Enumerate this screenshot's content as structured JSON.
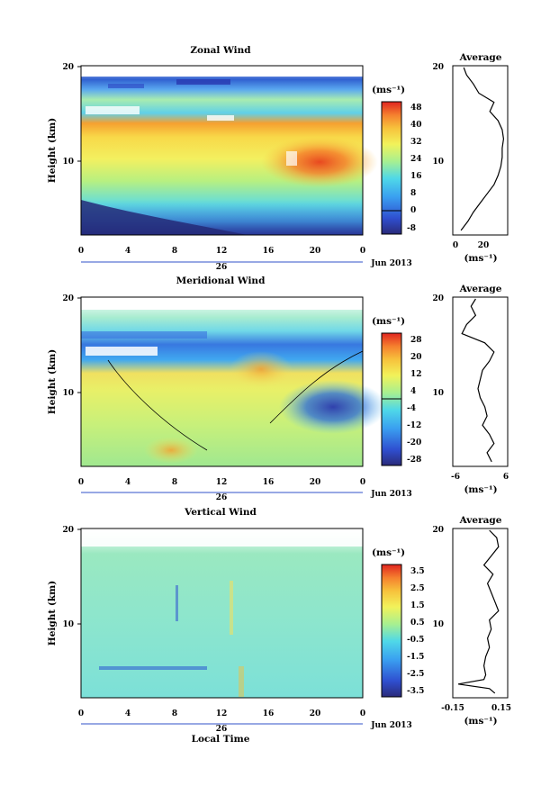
{
  "figure": {
    "xlabel": "Local Time",
    "date_label": "Jun 2013",
    "day_label": "26",
    "ylabel": "Height (km)",
    "unit_label": "(ms⁻¹)",
    "avg_unit_label": "(ms⁻¹)",
    "avg_title": "Average"
  },
  "chart_data": [
    {
      "type": "heatmap",
      "title": "Zonal Wind",
      "xlabel": "Local Time",
      "ylabel": "Height (km)",
      "x_ticks": [
        "0",
        "4",
        "8",
        "12",
        "16",
        "20",
        "0"
      ],
      "y_ticks": [
        "20",
        "10"
      ],
      "xlim": [
        0,
        24
      ],
      "ylim": [
        1.5,
        20
      ],
      "colorbar": {
        "unit": "(ms⁻¹)",
        "ticks": [
          "48",
          "40",
          "32",
          "24",
          "16",
          "8",
          "0",
          "-8"
        ],
        "range": [
          -10,
          50
        ]
      },
      "description_values": {
        "low_level_min": -8,
        "jet_core_max": 44,
        "jet_height_km": 11
      },
      "average_profile": {
        "title": "Average",
        "x_ticks": [
          "0",
          "20"
        ],
        "xlim": [
          -5,
          35
        ],
        "height": [
          2,
          3,
          4,
          5,
          6,
          7,
          8,
          9,
          10,
          11,
          12,
          13,
          14,
          15,
          16,
          17,
          18,
          19,
          19.8
        ],
        "value": [
          1,
          6,
          10,
          15,
          20,
          25,
          28,
          30,
          31,
          31,
          32,
          31,
          28,
          22,
          25,
          14,
          10,
          5,
          3
        ]
      }
    },
    {
      "type": "heatmap",
      "title": "Meridional Wind",
      "xlabel": "Local Time",
      "ylabel": "Height (km)",
      "x_ticks": [
        "0",
        "4",
        "8",
        "12",
        "16",
        "20",
        "0"
      ],
      "y_ticks": [
        "20",
        "10"
      ],
      "xlim": [
        0,
        24
      ],
      "ylim": [
        1.5,
        20
      ],
      "colorbar": {
        "unit": "(ms⁻¹)",
        "ticks": [
          "28",
          "20",
          "12",
          "4",
          "-4",
          "-12",
          "-20",
          "-28"
        ],
        "range": [
          -30,
          30
        ]
      },
      "average_profile": {
        "title": "Average",
        "x_ticks": [
          "-6",
          "6"
        ],
        "xlim": [
          -6,
          6
        ],
        "height": [
          2,
          3,
          4,
          5,
          6,
          7,
          8,
          9,
          10,
          11,
          12,
          13,
          14,
          15,
          16,
          17,
          18,
          19,
          19.8
        ],
        "value": [
          2.5,
          1.5,
          3,
          2,
          0.5,
          1.5,
          1,
          0,
          -0.5,
          0,
          0.5,
          2,
          3,
          1,
          -4,
          -3,
          -1,
          -2,
          -1
        ]
      }
    },
    {
      "type": "heatmap",
      "title": "Vertical Wind",
      "xlabel": "Local Time",
      "ylabel": "Height (km)",
      "x_ticks": [
        "0",
        "4",
        "8",
        "12",
        "16",
        "20",
        "0"
      ],
      "y_ticks": [
        "20",
        "10"
      ],
      "xlim": [
        0,
        24
      ],
      "ylim": [
        1.5,
        20
      ],
      "colorbar": {
        "unit": "(ms⁻¹)",
        "ticks": [
          "3.5",
          "2.5",
          "1.5",
          "0.5",
          "-0.5",
          "-1.5",
          "-2.5",
          "-3.5"
        ],
        "range": [
          -4,
          4
        ]
      },
      "average_profile": {
        "title": "Average",
        "x_ticks": [
          "-0.15",
          "0.15"
        ],
        "xlim": [
          -0.15,
          0.15
        ],
        "height": [
          2,
          2.5,
          3,
          3.5,
          4,
          5,
          6,
          7,
          8,
          9,
          10,
          11,
          12,
          13,
          14,
          15,
          16,
          17,
          18,
          19,
          19.8
        ],
        "value": [
          0.08,
          0.05,
          -0.12,
          0.02,
          0.03,
          0.02,
          0.03,
          0.05,
          0.04,
          0.06,
          0.05,
          0.1,
          0.08,
          0.06,
          0.04,
          0.07,
          0.02,
          0.06,
          0.1,
          0.09,
          0.05
        ]
      }
    }
  ]
}
